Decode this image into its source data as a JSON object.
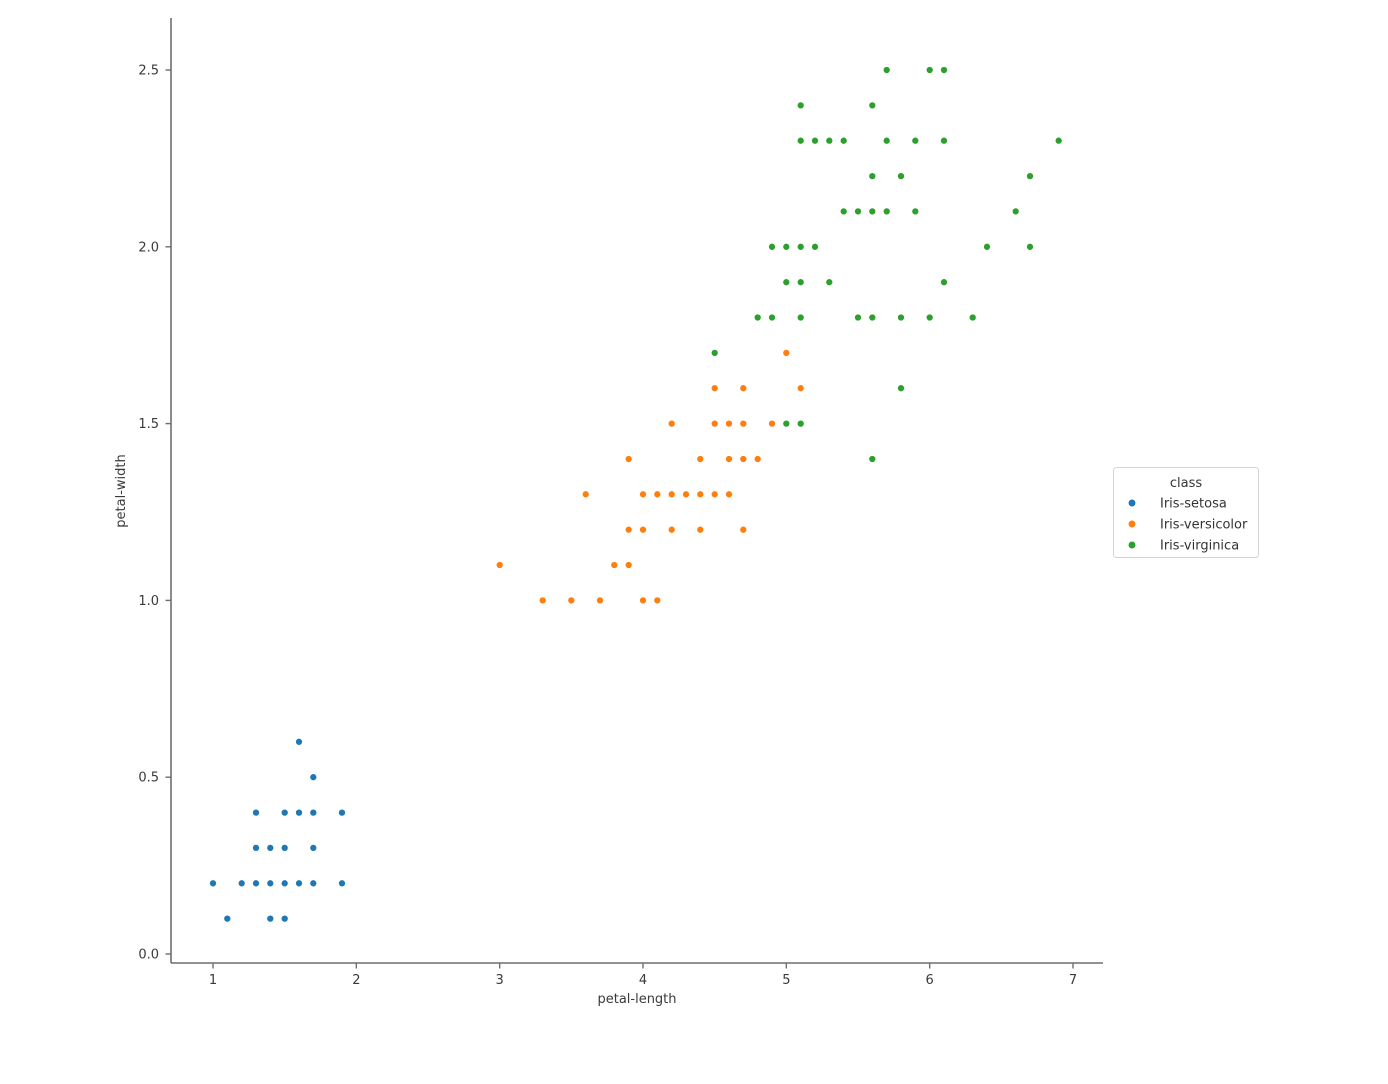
{
  "chart_data": {
    "type": "scatter",
    "title": "",
    "xlabel": "petal-length",
    "ylabel": "petal-width",
    "xticks": [
      "1",
      "2",
      "3",
      "4",
      "5",
      "6",
      "7"
    ],
    "yticks": [
      "0.0",
      "0.5",
      "1.0",
      "1.5",
      "2.0",
      "2.5"
    ],
    "xlim": [
      0.71,
      7.21
    ],
    "ylim": [
      -0.03,
      2.65
    ],
    "grid": false,
    "legend_title": "class",
    "legend_position": "center-right-outside",
    "marker": "circle",
    "series": [
      {
        "name": "Iris-setosa",
        "color": "#1f77b4",
        "points": [
          [
            1.0,
            0.2
          ],
          [
            1.1,
            0.1
          ],
          [
            1.2,
            0.2
          ],
          [
            1.3,
            0.2
          ],
          [
            1.3,
            0.3
          ],
          [
            1.3,
            0.4
          ],
          [
            1.4,
            0.1
          ],
          [
            1.4,
            0.2
          ],
          [
            1.4,
            0.3
          ],
          [
            1.5,
            0.1
          ],
          [
            1.5,
            0.2
          ],
          [
            1.5,
            0.3
          ],
          [
            1.5,
            0.4
          ],
          [
            1.6,
            0.2
          ],
          [
            1.6,
            0.4
          ],
          [
            1.6,
            0.6
          ],
          [
            1.7,
            0.2
          ],
          [
            1.7,
            0.3
          ],
          [
            1.7,
            0.4
          ],
          [
            1.7,
            0.5
          ],
          [
            1.9,
            0.2
          ],
          [
            1.9,
            0.4
          ]
        ]
      },
      {
        "name": "Iris-versicolor",
        "color": "#ff7f0e",
        "points": [
          [
            3.0,
            1.1
          ],
          [
            3.3,
            1.0
          ],
          [
            3.5,
            1.0
          ],
          [
            3.6,
            1.3
          ],
          [
            3.7,
            1.0
          ],
          [
            3.8,
            1.1
          ],
          [
            3.9,
            1.1
          ],
          [
            3.9,
            1.2
          ],
          [
            3.9,
            1.4
          ],
          [
            4.0,
            1.0
          ],
          [
            4.0,
            1.2
          ],
          [
            4.0,
            1.3
          ],
          [
            4.1,
            1.0
          ],
          [
            4.1,
            1.3
          ],
          [
            4.2,
            1.2
          ],
          [
            4.2,
            1.3
          ],
          [
            4.2,
            1.5
          ],
          [
            4.3,
            1.3
          ],
          [
            4.4,
            1.2
          ],
          [
            4.4,
            1.3
          ],
          [
            4.4,
            1.4
          ],
          [
            4.5,
            1.3
          ],
          [
            4.5,
            1.5
          ],
          [
            4.5,
            1.6
          ],
          [
            4.6,
            1.3
          ],
          [
            4.6,
            1.4
          ],
          [
            4.6,
            1.5
          ],
          [
            4.7,
            1.2
          ],
          [
            4.7,
            1.4
          ],
          [
            4.7,
            1.5
          ],
          [
            4.7,
            1.6
          ],
          [
            4.8,
            1.4
          ],
          [
            4.8,
            1.8
          ],
          [
            4.9,
            1.5
          ],
          [
            5.0,
            1.7
          ],
          [
            5.1,
            1.6
          ]
        ]
      },
      {
        "name": "Iris-virginica",
        "color": "#2ca02c",
        "points": [
          [
            4.5,
            1.7
          ],
          [
            4.8,
            1.8
          ],
          [
            4.9,
            1.8
          ],
          [
            4.9,
            2.0
          ],
          [
            5.0,
            1.5
          ],
          [
            5.0,
            1.9
          ],
          [
            5.0,
            2.0
          ],
          [
            5.1,
            1.5
          ],
          [
            5.1,
            1.8
          ],
          [
            5.1,
            1.9
          ],
          [
            5.1,
            2.0
          ],
          [
            5.1,
            2.3
          ],
          [
            5.1,
            2.4
          ],
          [
            5.2,
            2.0
          ],
          [
            5.2,
            2.3
          ],
          [
            5.3,
            1.9
          ],
          [
            5.3,
            2.3
          ],
          [
            5.4,
            2.1
          ],
          [
            5.4,
            2.3
          ],
          [
            5.5,
            1.8
          ],
          [
            5.5,
            2.1
          ],
          [
            5.6,
            1.4
          ],
          [
            5.6,
            1.8
          ],
          [
            5.6,
            2.1
          ],
          [
            5.6,
            2.2
          ],
          [
            5.6,
            2.4
          ],
          [
            5.7,
            2.1
          ],
          [
            5.7,
            2.3
          ],
          [
            5.7,
            2.5
          ],
          [
            5.8,
            1.6
          ],
          [
            5.8,
            1.8
          ],
          [
            5.8,
            2.2
          ],
          [
            5.9,
            2.1
          ],
          [
            5.9,
            2.3
          ],
          [
            6.0,
            1.8
          ],
          [
            6.0,
            2.5
          ],
          [
            6.1,
            1.9
          ],
          [
            6.1,
            2.3
          ],
          [
            6.1,
            2.5
          ],
          [
            6.3,
            1.8
          ],
          [
            6.4,
            2.0
          ],
          [
            6.6,
            2.1
          ],
          [
            6.7,
            2.0
          ],
          [
            6.7,
            2.2
          ],
          [
            6.9,
            2.3
          ]
        ]
      }
    ]
  }
}
